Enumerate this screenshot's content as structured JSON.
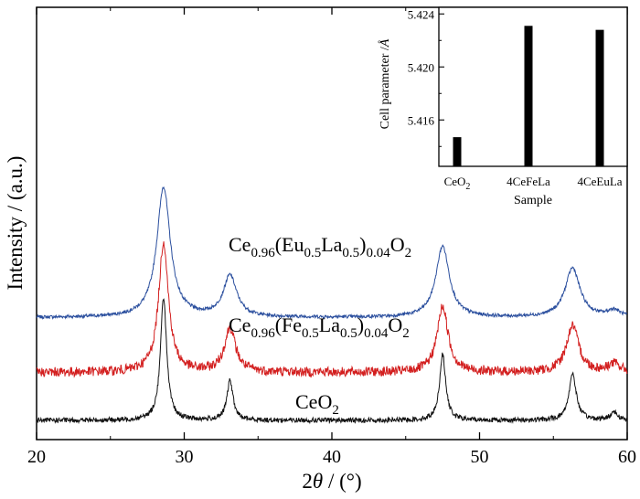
{
  "chart_data": [
    {
      "type": "line",
      "xlabel_main": "2",
      "xlabel_theta": "θ",
      "xlabel_unit": " / (°)",
      "ylabel": "Intensity / (a.u.)",
      "xlim": [
        20,
        60
      ],
      "x_ticks": [
        "20",
        "30",
        "40",
        "50",
        "60"
      ],
      "y_ticks": [],
      "grid": false,
      "series": [
        {
          "name_parts": [
            [
              "Ce",
              ""
            ],
            [
              "0.96",
              "sub"
            ],
            [
              "(Eu",
              ""
            ],
            [
              "0.5",
              "sub"
            ],
            [
              "La",
              ""
            ],
            [
              "0.5",
              "sub"
            ],
            [
              ")",
              ""
            ],
            [
              "0.04",
              "sub"
            ],
            [
              "O",
              ""
            ],
            [
              "2",
              "sub"
            ]
          ],
          "color": "#2b4f9e",
          "baseline": 0.75,
          "peaks": [
            [
              28.6,
              0.95,
              0.55
            ],
            [
              33.1,
              0.3,
              0.55
            ],
            [
              47.5,
              0.52,
              0.55
            ],
            [
              56.3,
              0.36,
              0.6
            ],
            [
              59.1,
              0.05,
              0.5
            ]
          ],
          "noise": 0.012
        },
        {
          "name_parts": [
            [
              "Ce",
              ""
            ],
            [
              "0.96",
              "sub"
            ],
            [
              "(Fe",
              ""
            ],
            [
              "0.5",
              "sub"
            ],
            [
              "La",
              ""
            ],
            [
              "0.5",
              "sub"
            ],
            [
              ")",
              ""
            ],
            [
              "0.04",
              "sub"
            ],
            [
              "O",
              ""
            ],
            [
              "2",
              "sub"
            ]
          ],
          "color": "#d31f1f",
          "baseline": 0.35,
          "peaks": [
            [
              28.6,
              0.95,
              0.4
            ],
            [
              33.1,
              0.32,
              0.45
            ],
            [
              47.5,
              0.48,
              0.45
            ],
            [
              56.3,
              0.34,
              0.5
            ],
            [
              59.1,
              0.06,
              0.5
            ]
          ],
          "noise": 0.035
        },
        {
          "name_parts": [
            [
              "CeO",
              ""
            ],
            [
              "2",
              "sub"
            ]
          ],
          "color": "#111111",
          "baseline": 0.0,
          "peaks": [
            [
              28.6,
              0.9,
              0.25
            ],
            [
              33.1,
              0.29,
              0.25
            ],
            [
              47.5,
              0.48,
              0.25
            ],
            [
              56.3,
              0.34,
              0.3
            ],
            [
              59.1,
              0.06,
              0.3
            ]
          ],
          "noise": 0.018
        }
      ]
    },
    {
      "type": "bar",
      "title": "",
      "xlabel": "Sample",
      "ylabel": "Cell parameter /",
      "ylabel_unit": "Å",
      "categories": [
        [
          [
            "CeO",
            ""
          ],
          [
            "2",
            "sub"
          ]
        ],
        [
          [
            "4CeFeLa",
            ""
          ]
        ],
        [
          [
            "4CeEuLa",
            ""
          ]
        ]
      ],
      "values": [
        5.4147,
        5.4231,
        5.4228
      ],
      "ylim": [
        5.4125,
        5.4245
      ],
      "y_ticks": [
        "5.416",
        "5.420",
        "5.424"
      ],
      "color": "#000000"
    }
  ]
}
